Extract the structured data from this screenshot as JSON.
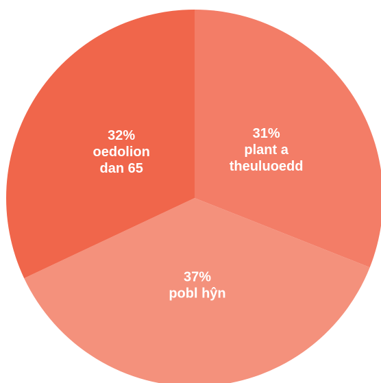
{
  "chart_data": {
    "type": "pie",
    "title": "",
    "start": "top",
    "direction": "clockwise",
    "slices": [
      {
        "value": 31,
        "percent_label": "31%",
        "name_lines": [
          "plant a",
          "theuluoedd"
        ],
        "color": "#f37d67"
      },
      {
        "value": 37,
        "percent_label": "37%",
        "name_lines": [
          "pobl hŷn"
        ],
        "color": "#f4917c"
      },
      {
        "value": 32,
        "percent_label": "32%",
        "name_lines": [
          "oedolion",
          "dan 65"
        ],
        "color": "#f0664b"
      }
    ]
  }
}
